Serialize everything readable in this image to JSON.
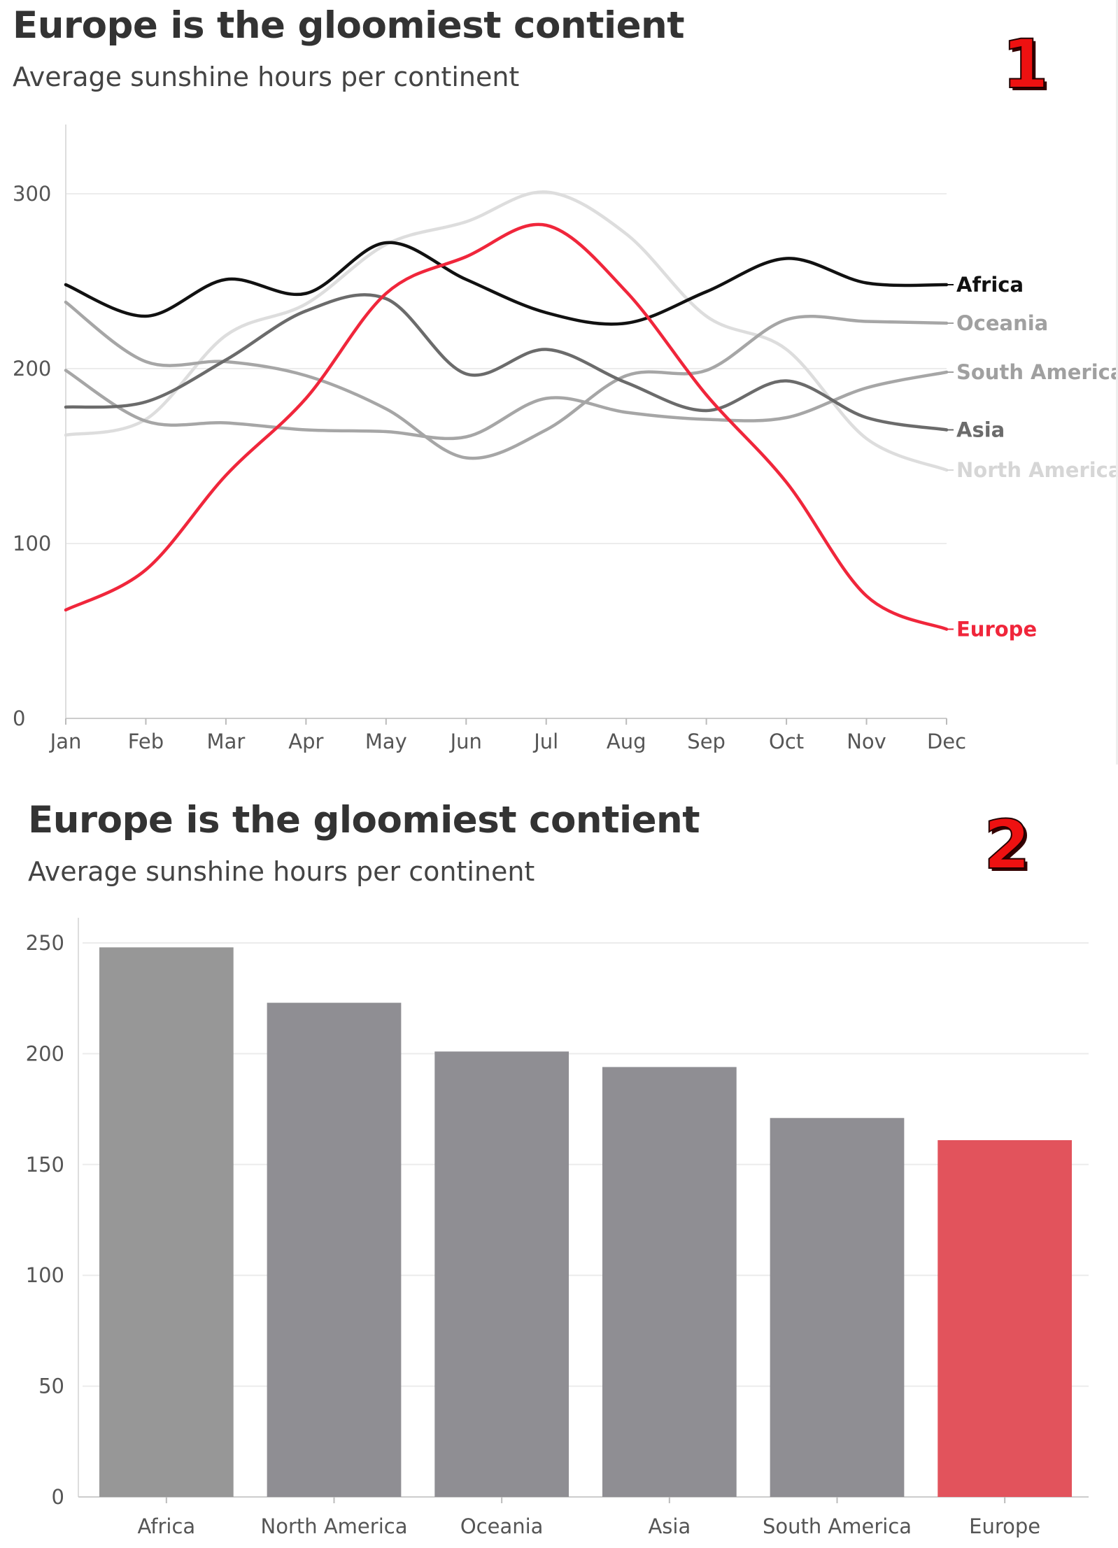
{
  "charts": [
    {
      "badge": "1",
      "title": "Europe is the gloomiest contient",
      "subtitle": "Average sunshine hours per continent"
    },
    {
      "badge": "2",
      "title": "Europe is the gloomiest contient",
      "subtitle": "Average sunshine hours per continent"
    }
  ],
  "chart_data": [
    {
      "type": "line",
      "title": "Europe is the gloomiest contient",
      "subtitle": "Average sunshine hours per continent",
      "xlabel": "",
      "ylabel": "",
      "categories": [
        "Jan",
        "Feb",
        "Mar",
        "Apr",
        "May",
        "Jun",
        "Jul",
        "Aug",
        "Sep",
        "Oct",
        "Nov",
        "Dec"
      ],
      "ylim": [
        0,
        350
      ],
      "yticks": [
        0,
        100,
        200,
        300
      ],
      "grid": true,
      "legend": "direct labels at line ends (right)",
      "series": [
        {
          "name": "Africa",
          "color": "#111111",
          "values": [
            248,
            230,
            251,
            243,
            272,
            251,
            232,
            226,
            244,
            263,
            249,
            248
          ]
        },
        {
          "name": "Oceania",
          "color": "#a6a6a6",
          "values": [
            238,
            204,
            204,
            196,
            177,
            149,
            165,
            196,
            199,
            228,
            227,
            226
          ]
        },
        {
          "name": "South America",
          "color": "#a6a6a6",
          "values": [
            199,
            170,
            169,
            165,
            164,
            161,
            183,
            175,
            171,
            172,
            189,
            198
          ]
        },
        {
          "name": "Asia",
          "color": "#6b6b6b",
          "values": [
            178,
            181,
            205,
            233,
            240,
            197,
            211,
            192,
            176,
            193,
            172,
            165
          ]
        },
        {
          "name": "North America",
          "color": "#dddddd",
          "values": [
            162,
            171,
            219,
            237,
            271,
            284,
            301,
            277,
            230,
            211,
            160,
            142
          ]
        },
        {
          "name": "Europe",
          "color": "#f0263b",
          "values": [
            62,
            85,
            139,
            183,
            243,
            264,
            282,
            244,
            185,
            135,
            70,
            51
          ]
        }
      ]
    },
    {
      "type": "bar",
      "title": "Europe is the gloomiest contient",
      "subtitle": "Average sunshine hours per continent",
      "xlabel": "",
      "ylabel": "",
      "categories": [
        "Africa",
        "North America",
        "Oceania",
        "Asia",
        "South America",
        "Europe"
      ],
      "values": [
        248,
        223,
        201,
        194,
        171,
        161
      ],
      "colors": [
        "#979797",
        "#8f8e93",
        "#8f8e93",
        "#8f8e93",
        "#8f8e93",
        "#e2535c"
      ],
      "ylim": [
        0,
        250
      ],
      "yticks": [
        0,
        50,
        100,
        150,
        200,
        250
      ],
      "grid": true
    }
  ]
}
